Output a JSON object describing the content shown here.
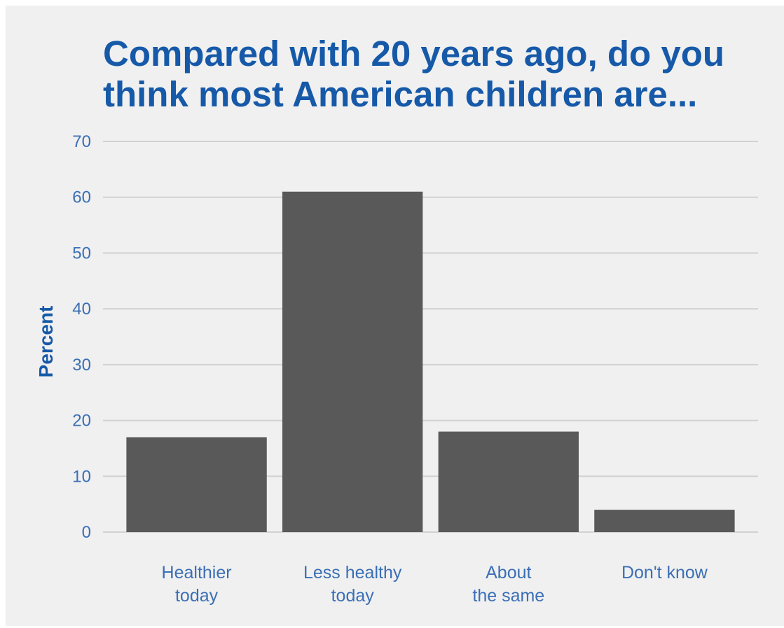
{
  "chart_data": {
    "type": "bar",
    "title_lines": [
      "Compared with 20 years ago, do you",
      "think most American children are..."
    ],
    "ylabel": "Percent",
    "xlabel": "",
    "categories": [
      [
        "Healthier",
        "today"
      ],
      [
        "Less healthy",
        "today"
      ],
      [
        "About",
        "the same"
      ],
      [
        "Don't know"
      ]
    ],
    "values": [
      17,
      61,
      18,
      4
    ],
    "ylim": [
      0,
      70
    ],
    "yticks": [
      0,
      10,
      20,
      30,
      40,
      50,
      60,
      70
    ],
    "grid": "horizontal",
    "legend": "none",
    "colors": {
      "bar": "#595959",
      "grid": "#d2d2d2",
      "background": "#f0f0f0",
      "title": "#1659a8",
      "axis_text": "#3b6fb5"
    }
  }
}
